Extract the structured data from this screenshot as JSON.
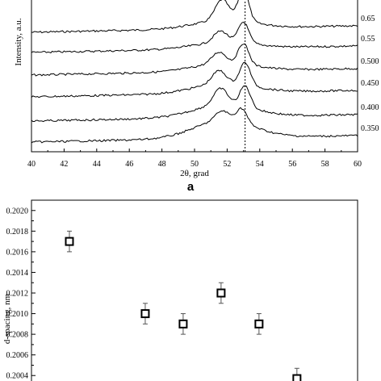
{
  "chart_data": [
    {
      "type": "line",
      "panel_label": "a",
      "xlabel": "2θ, grad",
      "ylabel": "Intensity, a.u.",
      "xlim": [
        40,
        60
      ],
      "x_ticks": [
        "40",
        "42",
        "44",
        "46",
        "48",
        "50",
        "52",
        "54",
        "56",
        "58",
        "60"
      ],
      "reference_line_x": 53.1,
      "grid": false,
      "series": [
        {
          "name": "0.65",
          "peak_main": 53.0,
          "peak_side": 51.7
        },
        {
          "name": "0.55",
          "peak_main": 53.0,
          "peak_side": 51.6
        },
        {
          "name": "0.500",
          "peak_main": 53.0,
          "peak_side": 51.5
        },
        {
          "name": "0.450",
          "peak_main": 53.1,
          "peak_side": 51.5
        },
        {
          "name": "0.400",
          "peak_main": 53.1,
          "peak_side": 51.6
        },
        {
          "name": "0.350",
          "peak_main": 52.9,
          "peak_side": 51.7
        }
      ]
    },
    {
      "type": "scatter",
      "ylabel": "d-spacing, nm",
      "ylim": [
        0.2003,
        0.2021
      ],
      "y_ticks": [
        "0.2004",
        "0.2006",
        "0.2008",
        "0.2010",
        "0.2012",
        "0.2014",
        "0.2016",
        "0.2018",
        "0.2020"
      ],
      "grid": false,
      "points": [
        {
          "x": 0.65,
          "y": 0.2017,
          "err": 0.0001
        },
        {
          "x": 0.55,
          "y": 0.201,
          "err": 0.0001
        },
        {
          "x": 0.5,
          "y": 0.2009,
          "err": 0.0001
        },
        {
          "x": 0.45,
          "y": 0.2012,
          "err": 0.0001
        },
        {
          "x": 0.4,
          "y": 0.2009,
          "err": 0.0001
        },
        {
          "x": 0.35,
          "y": 0.20037,
          "err": 0.0001
        }
      ]
    }
  ]
}
